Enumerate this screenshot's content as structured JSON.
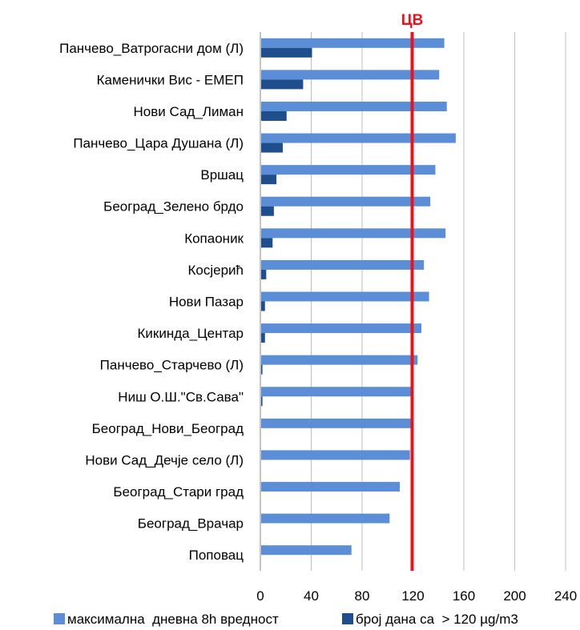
{
  "chart_data": {
    "type": "bar",
    "orientation": "horizontal",
    "categories": [
      "Панчево_Ватрогасни дом (Л)",
      "Каменички Вис - ЕМЕП",
      "Нови Сад_Лиман",
      "Панчево_Цара Душана (Л)",
      "Вршац",
      "Београд_Зелено брдо",
      "Копаоник",
      "Косјерић",
      "Нови Пазар",
      "Кикинда_Центар",
      "Панчево_Старчево (Л)",
      "Ниш О.Ш.\"Св.Сава\"",
      "Београд_Нови_Београд",
      "Нови Сад_Дечје село (Л)",
      "Београд_Стари град",
      "Београд_Врачар",
      "Поповац"
    ],
    "series": [
      {
        "name": "максимална  дневна 8h вредност",
        "color": "#5B8ED6",
        "values": [
          144,
          140,
          146,
          153,
          137,
          133,
          145,
          128,
          132,
          126,
          123,
          118,
          118,
          117,
          109,
          101,
          71
        ]
      },
      {
        "name": "број дана са  > 120 µg/m3",
        "color": "#1F4E8C",
        "values": [
          40,
          33,
          20,
          17,
          12,
          10,
          9,
          4,
          3,
          3,
          1,
          1,
          0,
          0,
          0,
          0,
          0
        ]
      }
    ],
    "xlim": [
      0,
      240
    ],
    "xticks": [
      0,
      40,
      80,
      120,
      160,
      200,
      240
    ],
    "grid": true,
    "legend_position": "bottom",
    "limit_line": {
      "value": 120,
      "label": "ЦВ",
      "color": "#E8141C"
    }
  }
}
